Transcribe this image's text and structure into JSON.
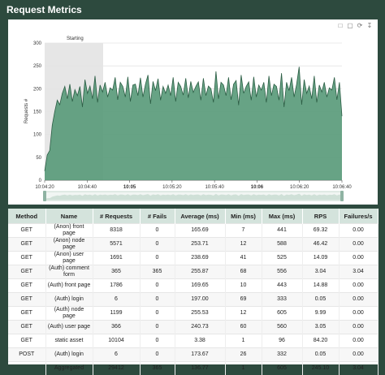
{
  "header": {
    "title": "Request Metrics"
  },
  "toolbox": {
    "icons": [
      "zoom-icon",
      "zoom-reset-icon",
      "restore-icon",
      "save-icon"
    ]
  },
  "chart_data": {
    "type": "area",
    "ylabel": "Requests #",
    "ylim": [
      0,
      300
    ],
    "yticks": [
      "300",
      "250",
      "200",
      "150",
      "100",
      "50",
      "0"
    ],
    "xticks": [
      "10:04:20",
      "10:04:40",
      "10:05",
      "10:05:20",
      "10:05:40",
      "10:06",
      "10:06:20",
      "10:06:40"
    ],
    "xticks_bold": [
      false,
      false,
      true,
      false,
      false,
      true,
      false,
      false
    ],
    "markarea_label": "Starting",
    "markarea_color": "#e6e6e6",
    "series_color": "#5a9b7b",
    "grid": true,
    "values": [
      20,
      55,
      65,
      120,
      150,
      175,
      165,
      190,
      205,
      178,
      210,
      172,
      198,
      185,
      205,
      160,
      220,
      190,
      206,
      178,
      228,
      170,
      208,
      193,
      214,
      182,
      202,
      197,
      225,
      176,
      214,
      205,
      182,
      226,
      172,
      208,
      210,
      185,
      224,
      182,
      210,
      230,
      167,
      216,
      196,
      222,
      175,
      205,
      190,
      208,
      185,
      225,
      172,
      214,
      205,
      186,
      223,
      180,
      216,
      192,
      205,
      215,
      175,
      223,
      185,
      206,
      200,
      170,
      238,
      178,
      214,
      208,
      185,
      225,
      176,
      210,
      218,
      164,
      230,
      190,
      205,
      215,
      175,
      226,
      182,
      208,
      197,
      214,
      170,
      228,
      185,
      210,
      205,
      175,
      234,
      160,
      214,
      196,
      225,
      182,
      210,
      248,
      165,
      220,
      190,
      206,
      178,
      228,
      170,
      208,
      193,
      214,
      182,
      202,
      197,
      225,
      176,
      214,
      140
    ]
  },
  "table": {
    "headers": [
      "Method",
      "Name",
      "# Requests",
      "# Fails",
      "Average (ms)",
      "Min (ms)",
      "Max (ms)",
      "RPS",
      "Failures/s"
    ],
    "rows": [
      [
        "GET",
        "(Anon) front page",
        "8318",
        "0",
        "165.69",
        "7",
        "441",
        "69.32",
        "0.00"
      ],
      [
        "GET",
        "(Anon) node page",
        "5571",
        "0",
        "253.71",
        "12",
        "588",
        "46.42",
        "0.00"
      ],
      [
        "GET",
        "(Anon) user page",
        "1691",
        "0",
        "238.69",
        "41",
        "525",
        "14.09",
        "0.00"
      ],
      [
        "GET",
        "(Auth) comment form",
        "365",
        "365",
        "255.87",
        "68",
        "556",
        "3.04",
        "3.04"
      ],
      [
        "GET",
        "(Auth) front page",
        "1786",
        "0",
        "169.65",
        "10",
        "443",
        "14.88",
        "0.00"
      ],
      [
        "GET",
        "(Auth) login",
        "6",
        "0",
        "197.00",
        "69",
        "333",
        "0.05",
        "0.00"
      ],
      [
        "GET",
        "(Auth) node page",
        "1199",
        "0",
        "255.53",
        "12",
        "605",
        "9.99",
        "0.00"
      ],
      [
        "GET",
        "(Auth) user page",
        "366",
        "0",
        "240.73",
        "60",
        "560",
        "3.05",
        "0.00"
      ],
      [
        "GET",
        "static asset",
        "10104",
        "0",
        "3.38",
        "1",
        "96",
        "84.20",
        "0.00"
      ],
      [
        "POST",
        "(Auth) login",
        "6",
        "0",
        "173.67",
        "26",
        "332",
        "0.05",
        "0.00"
      ],
      [
        "",
        "Aggregated",
        "29412",
        "365",
        "136.77",
        "1",
        "605",
        "245.10",
        "3.04"
      ]
    ]
  }
}
